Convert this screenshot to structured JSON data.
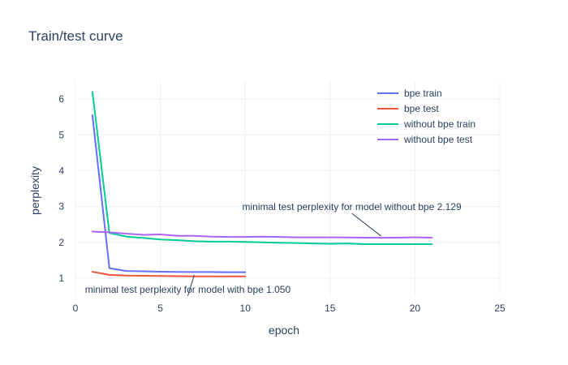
{
  "chart_data": {
    "type": "line",
    "title": "Train/test curve",
    "xlabel": "epoch",
    "ylabel": "perplexity",
    "xlim": [
      0,
      25
    ],
    "ylim": [
      0.5,
      6.5
    ],
    "xticks": [
      0,
      5,
      10,
      15,
      20,
      25
    ],
    "yticks": [
      1,
      2,
      3,
      4,
      5,
      6
    ],
    "grid": true,
    "legend_position": "top-right",
    "series": [
      {
        "name": "bpe train",
        "color": "#636efa",
        "x": [
          1,
          2,
          3,
          4,
          5,
          6,
          7,
          8,
          9,
          10
        ],
        "y": [
          5.55,
          1.28,
          1.2,
          1.19,
          1.18,
          1.175,
          1.17,
          1.17,
          1.165,
          1.165
        ]
      },
      {
        "name": "bpe test",
        "color": "#ef553b",
        "x": [
          1,
          2,
          3,
          4,
          5,
          6,
          7,
          8,
          9,
          10
        ],
        "y": [
          1.18,
          1.09,
          1.07,
          1.065,
          1.06,
          1.055,
          1.05,
          1.05,
          1.05,
          1.05
        ]
      },
      {
        "name": "without bpe train",
        "color": "#00cc96",
        "x": [
          1,
          2,
          3,
          4,
          5,
          6,
          7,
          8,
          9,
          10,
          11,
          12,
          13,
          14,
          15,
          16,
          17,
          18,
          19,
          20,
          21
        ],
        "y": [
          6.2,
          2.26,
          2.16,
          2.12,
          2.08,
          2.06,
          2.03,
          2.02,
          2.02,
          2.01,
          2.0,
          1.99,
          1.98,
          1.97,
          1.96,
          1.97,
          1.95,
          1.95,
          1.95,
          1.95,
          1.95
        ]
      },
      {
        "name": "without bpe test",
        "color": "#ab63fa",
        "x": [
          1,
          2,
          3,
          4,
          5,
          6,
          7,
          8,
          9,
          10,
          11,
          12,
          13,
          14,
          15,
          16,
          17,
          18,
          19,
          20,
          21
        ],
        "y": [
          2.3,
          2.28,
          2.24,
          2.21,
          2.22,
          2.18,
          2.18,
          2.16,
          2.15,
          2.15,
          2.16,
          2.15,
          2.14,
          2.14,
          2.14,
          2.135,
          2.13,
          2.129,
          2.13,
          2.14,
          2.13
        ]
      }
    ],
    "annotations": [
      {
        "text": "minimal test perplexity for model with bpe 1.050",
        "x": 7,
        "y": 1.05
      },
      {
        "text": "minimal test perplexity for model without bpe 2.129",
        "x": 18,
        "y": 2.129
      }
    ]
  }
}
